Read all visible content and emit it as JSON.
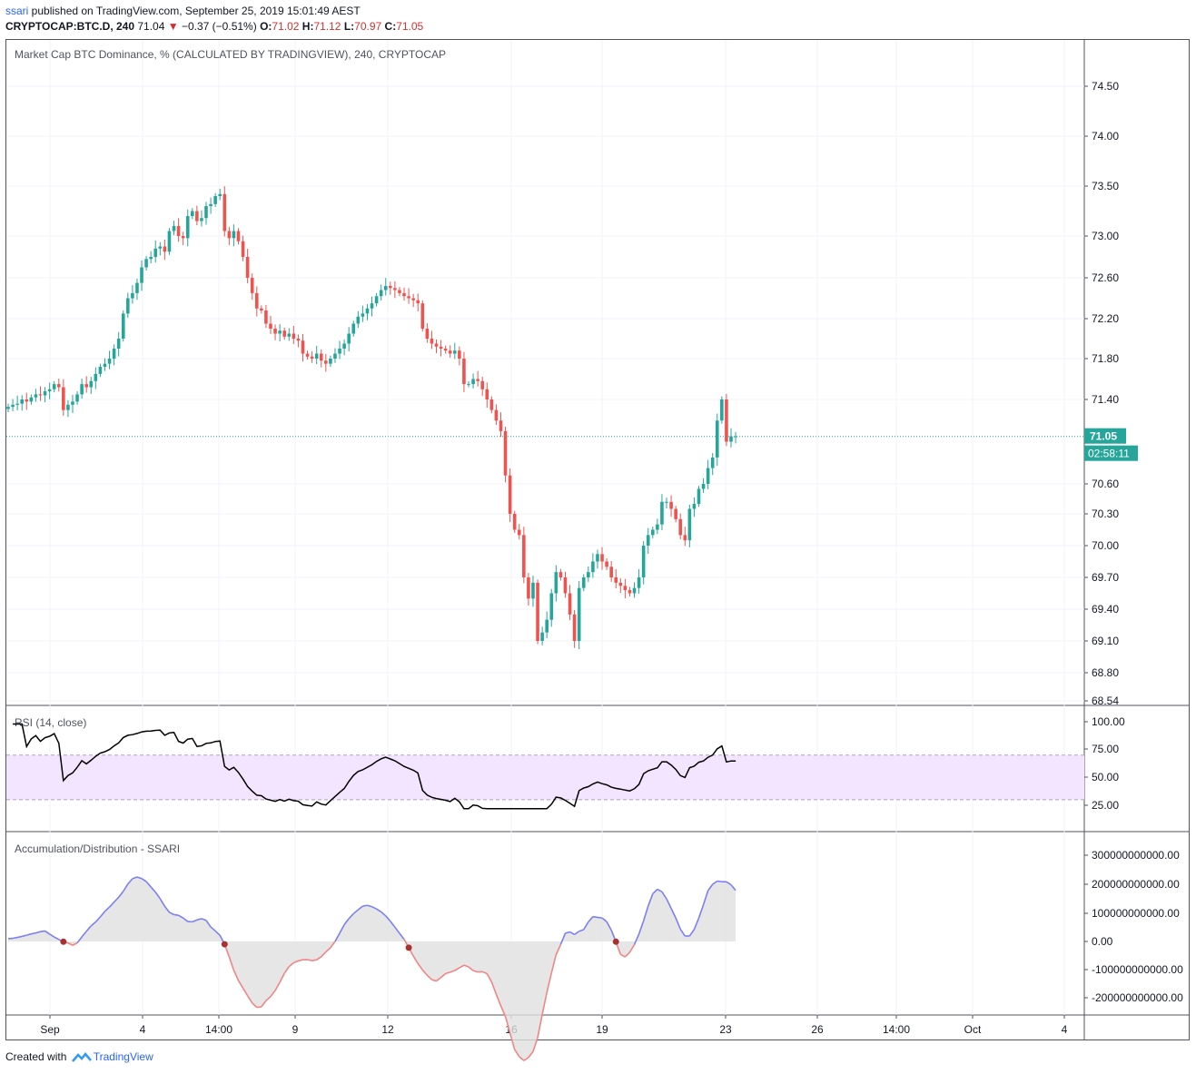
{
  "header": {
    "user": "ssari",
    "published_text": " published on TradingView.com, September 25, 2019 15:01:49 AEST",
    "symbol": "CRYPTOCAP:BTC.D, 240",
    "last": "71.04",
    "change": "−0.37 (−0.51%)",
    "o_label": "O:",
    "o": "71.02",
    "h_label": "H:",
    "h": "71.12",
    "l_label": "L:",
    "l": "70.97",
    "c_label": "C:",
    "c": "71.05"
  },
  "colors": {
    "up": "#26a69a",
    "down": "#ef5350",
    "rsi_fill": "#f3e5ff",
    "ad_pos": "#7b7ff2",
    "ad_neg": "#ef8585",
    "ad_fill": "#e0e0e0",
    "price_label_bg": "#26a69a"
  },
  "chart_data": [
    {
      "type": "candlestick",
      "title": "Market Cap BTC Dominance, % (CALCULATED BY TRADINGVIEW), 240, CRYPTOCAP",
      "y_ticks": [
        "74.50",
        "74.00",
        "73.50",
        "73.00",
        "72.60",
        "72.20",
        "71.80",
        "71.40",
        "70.60",
        "70.30",
        "70.00",
        "69.70",
        "69.40",
        "69.10",
        "68.80",
        "68.54"
      ],
      "last_price_label": "71.05",
      "countdown_label": "02:58:11",
      "x_ticks": [
        "Sep",
        "4",
        "14:00",
        "9",
        "12",
        "16",
        "19",
        "23",
        "26",
        "14:00",
        "Oct",
        "4"
      ],
      "closes": [
        71.33,
        71.35,
        71.36,
        71.4,
        71.38,
        71.42,
        71.45,
        71.44,
        71.48,
        71.5,
        71.55,
        71.52,
        71.3,
        71.35,
        71.38,
        71.45,
        71.55,
        71.52,
        71.58,
        71.65,
        71.72,
        71.75,
        71.8,
        71.9,
        72.0,
        72.25,
        72.4,
        72.45,
        72.55,
        72.7,
        72.78,
        72.8,
        72.88,
        72.9,
        72.85,
        73.05,
        73.1,
        73.0,
        72.98,
        73.2,
        73.25,
        73.15,
        73.18,
        73.3,
        73.32,
        73.4,
        73.42,
        73.05,
        72.98,
        73.05,
        72.95,
        72.8,
        72.6,
        72.45,
        72.3,
        72.28,
        72.15,
        72.1,
        72.05,
        72.08,
        72.02,
        72.05,
        72.0,
        71.98,
        71.85,
        71.82,
        71.8,
        71.85,
        71.78,
        71.75,
        71.8,
        71.85,
        71.9,
        71.95,
        72.05,
        72.15,
        72.22,
        72.25,
        72.3,
        72.35,
        72.42,
        72.48,
        72.52,
        72.5,
        72.48,
        72.45,
        72.42,
        72.4,
        72.38,
        72.35,
        72.1,
        72.0,
        71.95,
        71.92,
        71.9,
        71.88,
        71.85,
        71.88,
        71.8,
        71.55,
        71.55,
        71.6,
        71.58,
        71.5,
        71.4,
        71.3,
        71.2,
        71.1,
        70.68,
        70.3,
        70.15,
        70.1,
        69.7,
        69.5,
        69.65,
        69.1,
        69.18,
        69.3,
        69.55,
        69.75,
        69.7,
        69.55,
        69.35,
        69.1,
        69.6,
        69.7,
        69.75,
        69.85,
        69.92,
        69.85,
        69.8,
        69.7,
        69.65,
        69.62,
        69.58,
        69.55,
        69.6,
        69.7,
        70.0,
        70.1,
        70.15,
        70.2,
        70.42,
        70.42,
        70.35,
        70.25,
        70.1,
        70.05,
        70.35,
        70.4,
        70.55,
        70.6,
        70.75,
        70.85,
        71.2,
        71.4,
        71.0,
        71.05,
        71.05
      ]
    },
    {
      "type": "line",
      "title": "RSI (14, close)",
      "y_ticks": [
        "100.00",
        "75.00",
        "50.00",
        "25.00"
      ],
      "band": [
        30,
        70
      ]
    },
    {
      "type": "area",
      "title": "Accumulation/Distribution - SSARI",
      "y_ticks": [
        "300000000000.00",
        "200000000000.00",
        "100000000000.00",
        "0.00",
        "-100000000000.00",
        "-200000000000.00"
      ]
    }
  ],
  "footer": {
    "created_with": "Created with ",
    "brand": "TradingView"
  }
}
